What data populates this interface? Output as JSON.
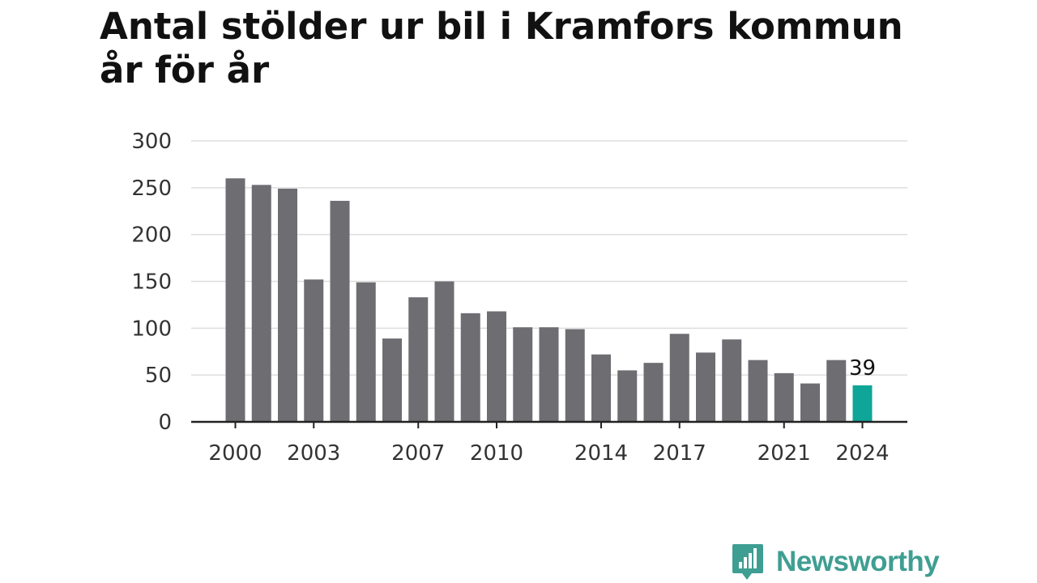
{
  "chart_data": {
    "type": "bar",
    "title": "Antal stölder ur bil i Kramfors kommun år för år",
    "x": [
      2000,
      2001,
      2002,
      2003,
      2004,
      2005,
      2006,
      2007,
      2008,
      2009,
      2010,
      2011,
      2012,
      2013,
      2014,
      2015,
      2016,
      2017,
      2018,
      2019,
      2020,
      2021,
      2022,
      2023,
      2024
    ],
    "values": [
      260,
      253,
      249,
      152,
      236,
      149,
      89,
      133,
      150,
      116,
      118,
      101,
      101,
      99,
      72,
      55,
      63,
      94,
      74,
      88,
      66,
      52,
      41,
      66,
      39
    ],
    "ylim": [
      0,
      300
    ],
    "yticks": [
      "0",
      "50",
      "100",
      "150",
      "200",
      "250",
      "300"
    ],
    "xtick_labels": [
      "2000",
      "2003",
      "2007",
      "2010",
      "2014",
      "2017",
      "2021",
      "2024"
    ],
    "highlight_label": "39",
    "colors": {
      "bar": "#6e6d72",
      "highlight": "#0fa599",
      "grid": "#dddddd",
      "axis": "#222222"
    },
    "grid": true
  },
  "brand": {
    "name": "Newsworthy",
    "icon": "newsworthy-logo-icon",
    "color": "#3f9e92"
  }
}
